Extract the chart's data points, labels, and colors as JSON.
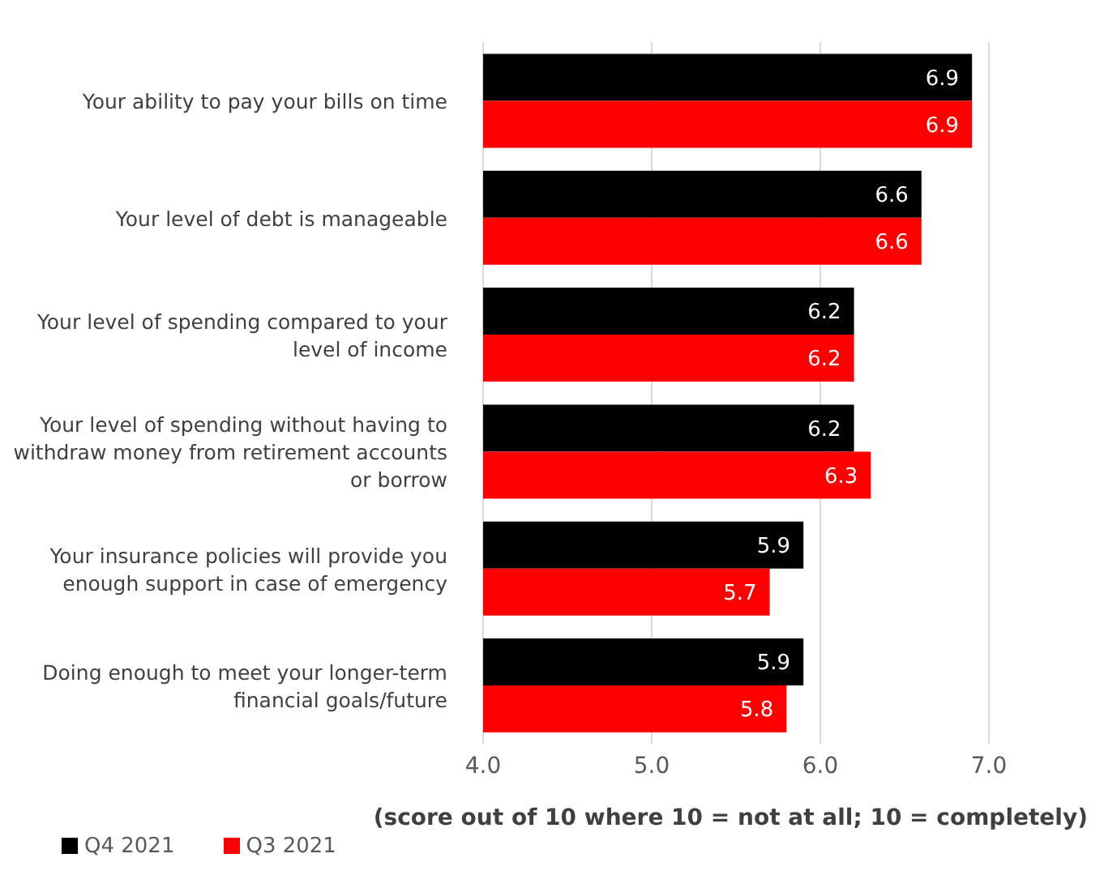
{
  "chart_data": {
    "type": "bar",
    "orientation": "horizontal",
    "categories": [
      "Your ability to pay your bills on time",
      "Your level of debt is manageable",
      "Your level of spending compared to your level of income",
      "Your level of spending without having to withdraw money from retirement accounts or borrow",
      "Your insurance policies will provide you enough support in case of emergency",
      "Doing enough to meet your longer-term financial goals/future"
    ],
    "series": [
      {
        "name": "Q4 2021",
        "color": "#000000",
        "values": [
          6.9,
          6.6,
          6.2,
          6.2,
          5.9,
          5.9
        ]
      },
      {
        "name": "Q3 2021",
        "color": "#ff0000",
        "values": [
          6.9,
          6.6,
          6.2,
          6.3,
          5.7,
          5.8
        ]
      }
    ],
    "xlim": [
      4,
      7
    ],
    "xticks": [
      {
        "value": 4,
        "label": "4.0"
      },
      {
        "value": 5,
        "label": "5.0"
      },
      {
        "value": 6,
        "label": "6.0"
      },
      {
        "value": 7,
        "label": "7.0"
      }
    ],
    "xlabel": "(score out of 10 where 10 = not at all; 10 = completely)",
    "grid": "x",
    "legend": "bottom left",
    "data_labels": true
  }
}
